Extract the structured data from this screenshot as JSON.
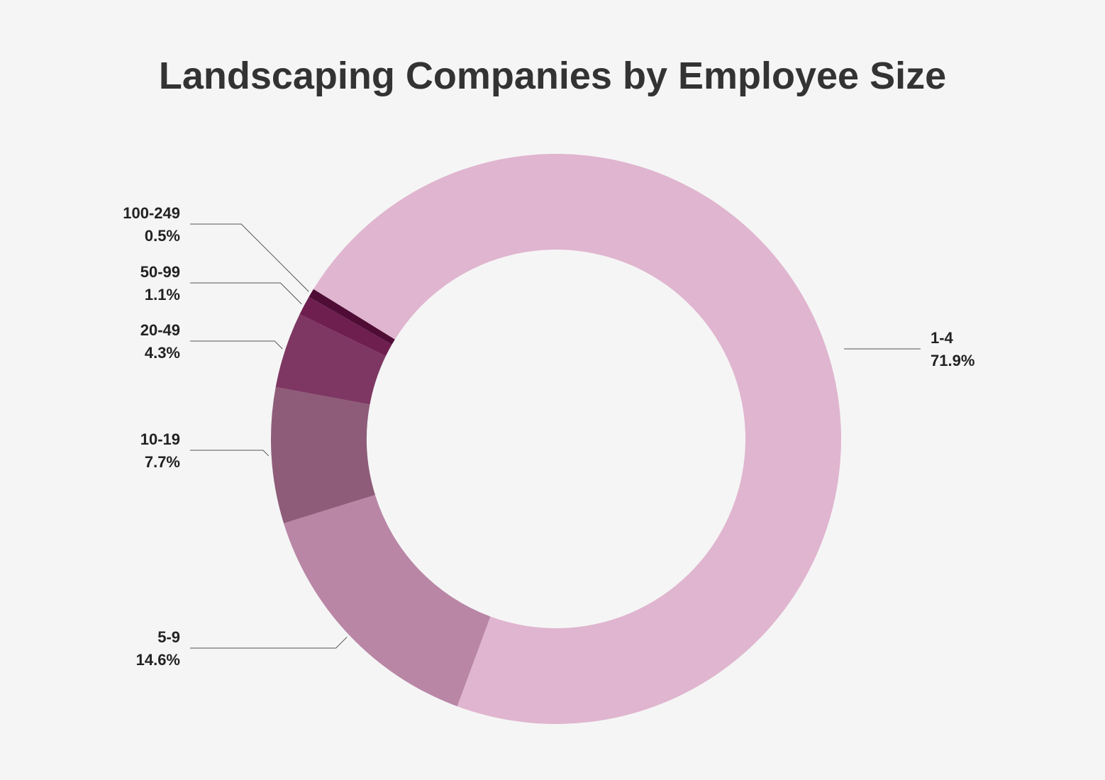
{
  "chart_data": {
    "type": "pie",
    "title": "Landscaping Companies by Employee Size",
    "donut": true,
    "slices": [
      {
        "label": "1-4",
        "value": 71.9,
        "value_label": "71.9%",
        "color": "#e0b5cf",
        "label_side": "right"
      },
      {
        "label": "5-9",
        "value": 14.6,
        "value_label": "14.6%",
        "color": "#b986a6",
        "label_side": "left"
      },
      {
        "label": "10-19",
        "value": 7.7,
        "value_label": "7.7%",
        "color": "#8e5c79",
        "label_side": "left"
      },
      {
        "label": "20-49",
        "value": 4.3,
        "value_label": "4.3%",
        "color": "#7e3762",
        "label_side": "left"
      },
      {
        "label": "50-99",
        "value": 1.1,
        "value_label": "1.1%",
        "color": "#6e1f50",
        "label_side": "left"
      },
      {
        "label": "100-249",
        "value": 0.5,
        "value_label": "0.5%",
        "color": "#4f0d36",
        "label_side": "left"
      }
    ]
  }
}
